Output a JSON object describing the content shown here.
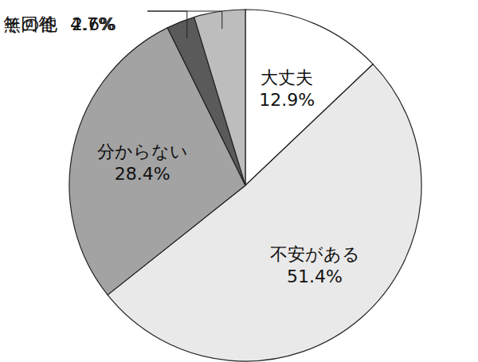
{
  "chart_data": {
    "type": "pie",
    "categories": [
      "大丈夫",
      "不安がある",
      "分からない",
      "その他",
      "無回答"
    ],
    "values": [
      12.9,
      51.4,
      28.4,
      2.6,
      4.7
    ],
    "value_labels": [
      "12.9%",
      "51.4%",
      "28.4%",
      "2.6%",
      "4.7%"
    ],
    "colors": [
      "#ffffff",
      "#e9e9e9",
      "#a3a3a3",
      "#5a5a5a",
      "#bdbdbd"
    ],
    "data_labels": true
  }
}
